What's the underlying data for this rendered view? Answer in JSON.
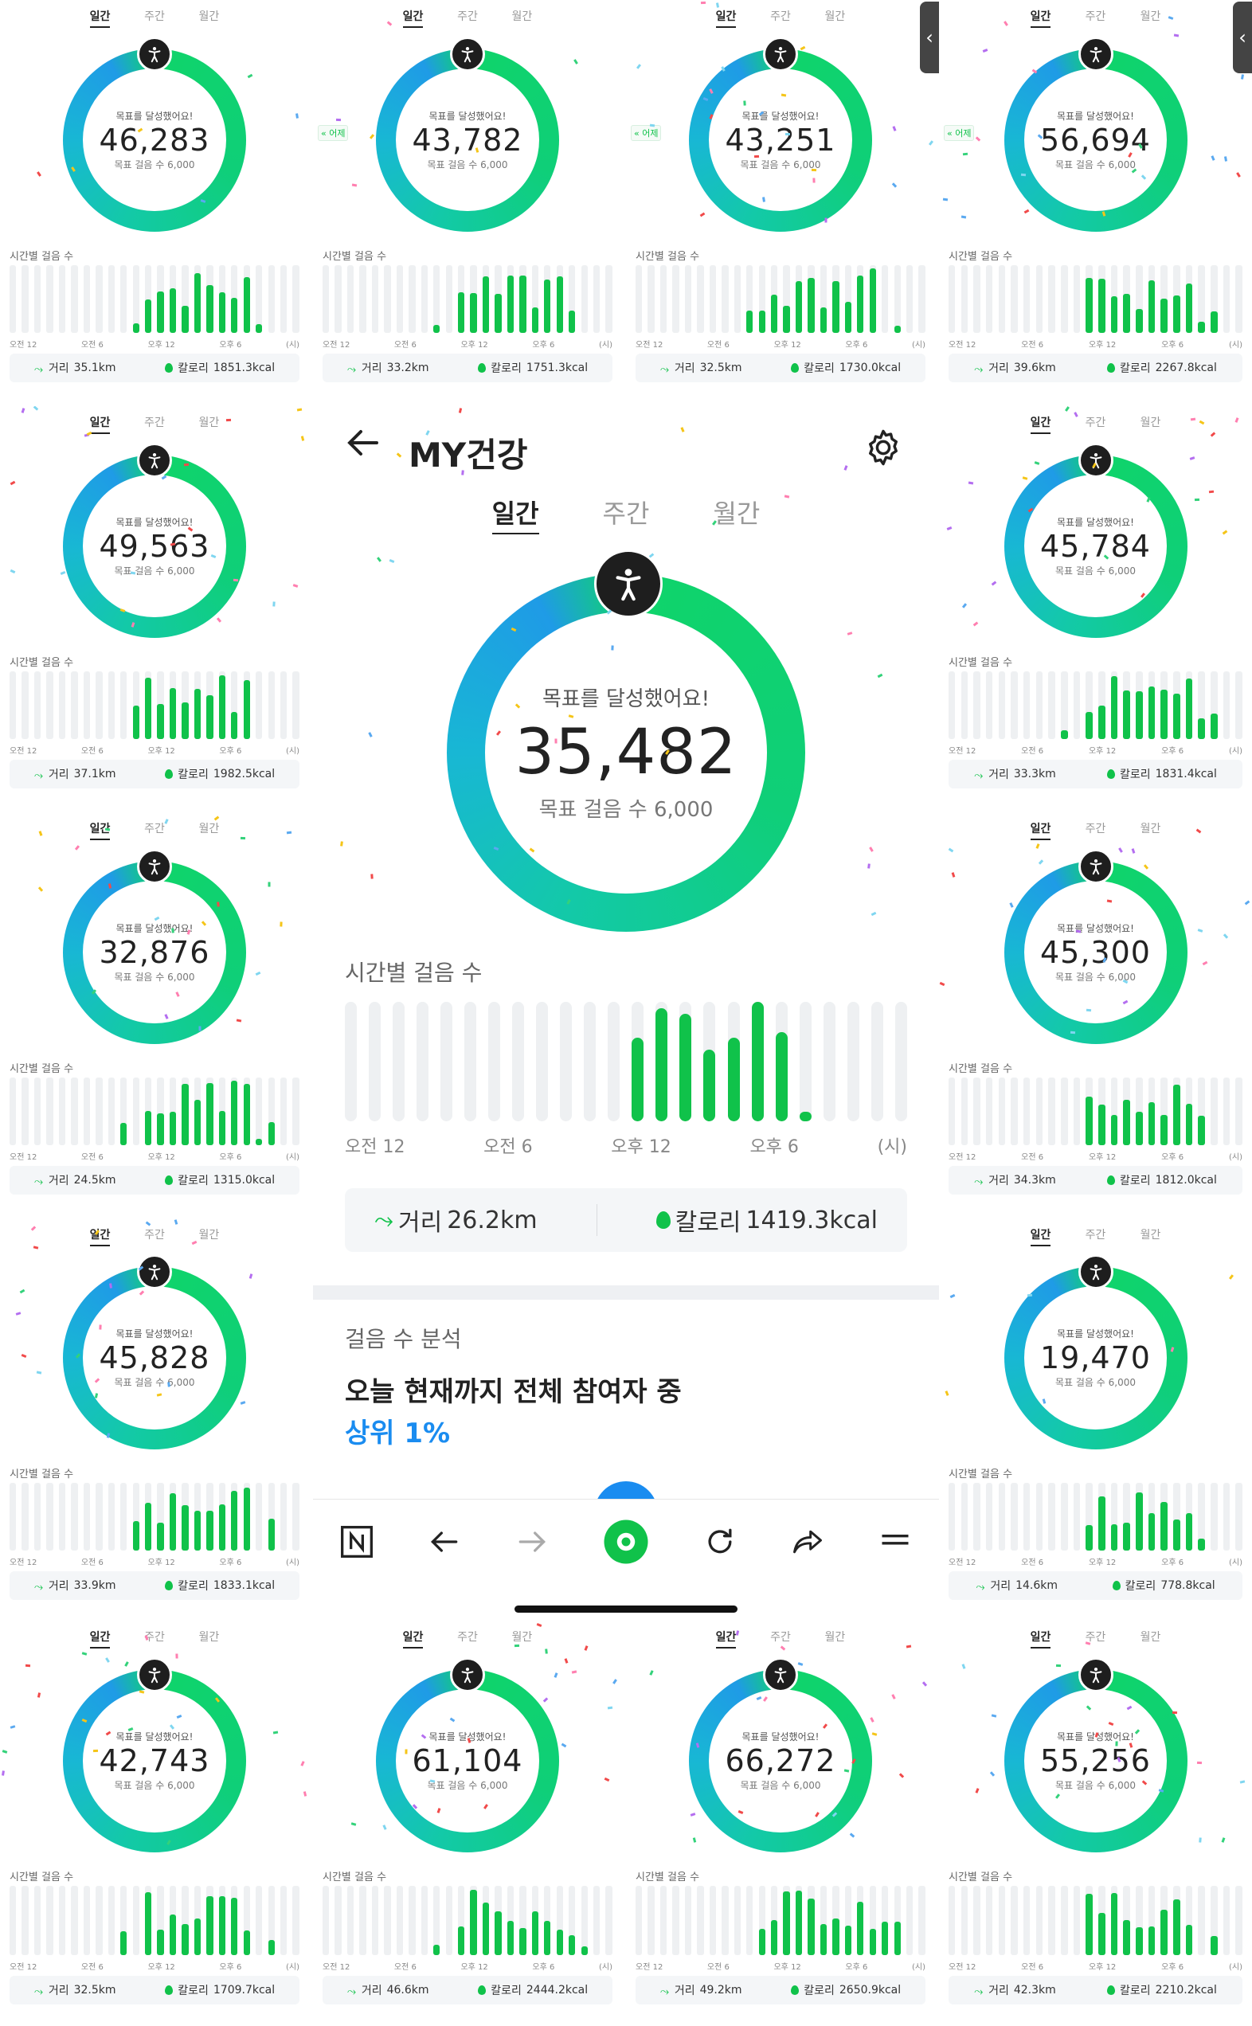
{
  "labels": {
    "tab_daily": "일간",
    "tab_weekly": "주간",
    "tab_monthly": "월간",
    "achieved": "목표를 달성했어요!",
    "goal": "목표 걸음 수 6,000",
    "hourly_title": "시간별 걸음 수",
    "axis": [
      "오전 12",
      "오전 6",
      "오후 12",
      "오후 6",
      "(시)"
    ],
    "distance_prefix": "거리 ",
    "calorie_prefix": "칼로리 ",
    "yesterday": "« 어제"
  },
  "colors": {
    "ring_green": "#0fd46a",
    "ring_blue": "#1f9be6",
    "bar_green": "#10c24a",
    "bar_track": "#eef0f2",
    "rank_blue": "#1a8cf0"
  },
  "main": {
    "title": "MY건강",
    "back_icon": "arrow-left-icon",
    "settings_icon": "gear-icon",
    "steps": "35,482",
    "distance": "26.2km",
    "calories": "1419.3kcal",
    "analysis_title": "걸음 수 분석",
    "analysis_text": "오늘 현재까지 전체 참여자 중",
    "rank": "상위 1%",
    "bars": [
      0,
      0,
      0,
      0,
      0,
      0,
      0,
      0,
      0,
      0,
      0,
      0,
      0.7,
      0.95,
      0.9,
      0.6,
      0.7,
      1.0,
      0.75,
      0.08,
      0,
      0,
      0,
      0
    ],
    "toolbar": [
      "n-logo-icon",
      "back-arrow-icon",
      "forward-arrow-icon",
      "home-ring-icon",
      "refresh-icon",
      "share-icon",
      "menu-icon"
    ]
  },
  "tiles": [
    {
      "steps": "46,283",
      "distance": "35.1km",
      "calories": "1851.3kcal"
    },
    {
      "steps": "43,782",
      "distance": "33.2km",
      "calories": "1751.3kcal"
    },
    {
      "steps": "43,251",
      "distance": "32.5km",
      "calories": "1730.0kcal"
    },
    {
      "steps": "56,694",
      "distance": "39.6km",
      "calories": "2267.8kcal"
    },
    {
      "steps": "49,563",
      "distance": "37.1km",
      "calories": "1982.5kcal"
    },
    {
      "steps": "45,784",
      "distance": "33.3km",
      "calories": "1831.4kcal"
    },
    {
      "steps": "32,876",
      "distance": "24.5km",
      "calories": "1315.0kcal"
    },
    {
      "steps": "45,300",
      "distance": "34.3km",
      "calories": "1812.0kcal"
    },
    {
      "steps": "45,828",
      "distance": "33.9km",
      "calories": "1833.1kcal"
    },
    {
      "steps": "19,470",
      "distance": "14.6km",
      "calories": "778.8kcal"
    },
    {
      "steps": "42,743",
      "distance": "32.5km",
      "calories": "1709.7kcal"
    },
    {
      "steps": "61,104",
      "distance": "46.6km",
      "calories": "2444.2kcal"
    },
    {
      "steps": "66,272",
      "distance": "49.2km",
      "calories": "2650.9kcal"
    },
    {
      "steps": "55,256",
      "distance": "42.3km",
      "calories": "2210.2kcal"
    }
  ]
}
